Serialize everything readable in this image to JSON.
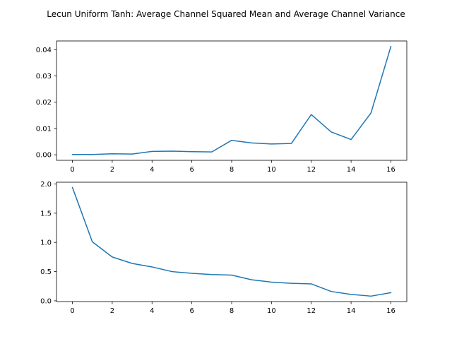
{
  "title": "Lecun Uniform Tanh: Average Channel Squared Mean and Average Channel Variance",
  "chart_data": [
    {
      "type": "line",
      "x": [
        0,
        1,
        2,
        3,
        4,
        5,
        6,
        7,
        8,
        9,
        10,
        11,
        12,
        13,
        14,
        15,
        16
      ],
      "series": [
        {
          "values": [
            0.0001,
            0.0001,
            0.0004,
            0.0003,
            0.0013,
            0.0014,
            0.0012,
            0.0011,
            0.0055,
            0.0045,
            0.0041,
            0.0043,
            0.0153,
            0.0087,
            0.0058,
            0.0159,
            0.0412
          ],
          "color": "#1f77b4"
        }
      ],
      "xlim": [
        -0.8,
        16.8
      ],
      "ylim": [
        -0.0021,
        0.0433
      ],
      "xticks": [
        0,
        2,
        4,
        6,
        8,
        10,
        12,
        14,
        16
      ],
      "xtick_labels": [
        "0",
        "2",
        "4",
        "6",
        "8",
        "10",
        "12",
        "14",
        "16"
      ],
      "yticks": [
        0,
        0.01,
        0.02,
        0.03,
        0.04
      ],
      "ytick_labels": [
        "0.00",
        "0.01",
        "0.02",
        "0.03",
        "0.04"
      ],
      "grid": false
    },
    {
      "type": "line",
      "x": [
        0,
        1,
        2,
        3,
        4,
        5,
        6,
        7,
        8,
        9,
        10,
        11,
        12,
        13,
        14,
        15,
        16
      ],
      "series": [
        {
          "values": [
            1.94,
            1.01,
            0.75,
            0.64,
            0.58,
            0.5,
            0.47,
            0.45,
            0.44,
            0.36,
            0.32,
            0.3,
            0.29,
            0.16,
            0.11,
            0.08,
            0.14
          ],
          "color": "#1f77b4"
        }
      ],
      "xlim": [
        -0.8,
        16.8
      ],
      "ylim": [
        -0.013,
        2.03
      ],
      "xticks": [
        0,
        2,
        4,
        6,
        8,
        10,
        12,
        14,
        16
      ],
      "xtick_labels": [
        "0",
        "2",
        "4",
        "6",
        "8",
        "10",
        "12",
        "14",
        "16"
      ],
      "yticks": [
        0,
        0.5,
        1.0,
        1.5,
        2.0
      ],
      "ytick_labels": [
        "0.0",
        "0.5",
        "1.0",
        "1.5",
        "2.0"
      ],
      "grid": false
    }
  ]
}
